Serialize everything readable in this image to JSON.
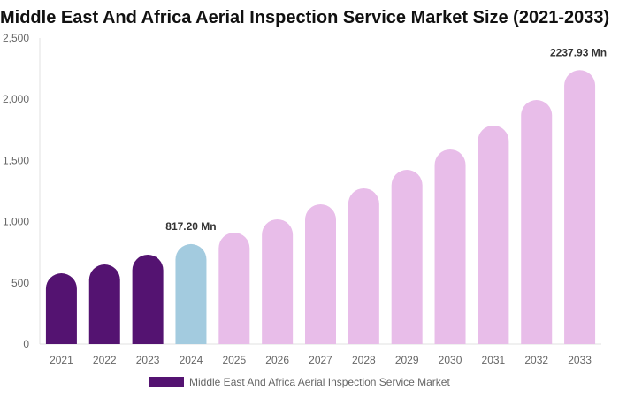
{
  "chart_data": {
    "type": "bar",
    "title": "Middle East And Africa Aerial Inspection Service Market Size (2021-2033)",
    "categories": [
      "2021",
      "2022",
      "2023",
      "2024",
      "2025",
      "2026",
      "2027",
      "2028",
      "2029",
      "2030",
      "2031",
      "2032",
      "2033"
    ],
    "series": [
      {
        "name": "Middle East And Africa Aerial Inspection Service Market",
        "values": [
          578,
          650,
          730,
          817.2,
          910,
          1019,
          1142,
          1272,
          1423,
          1590,
          1785,
          1994,
          2237.93
        ]
      }
    ],
    "data_labels": {
      "3": "817.20 Mn",
      "12": "2237.93 Mn"
    },
    "yticks": [
      "0",
      "500",
      "1,000",
      "1,500",
      "2,000",
      "2,500"
    ],
    "ylim": [
      0,
      2500
    ],
    "xlabel": "",
    "ylabel": "",
    "grid": false,
    "legend_position": "bottom",
    "colors": {
      "historical": "#541371",
      "base_year": "#a3cbdf",
      "forecast": "#e8bde9"
    }
  }
}
